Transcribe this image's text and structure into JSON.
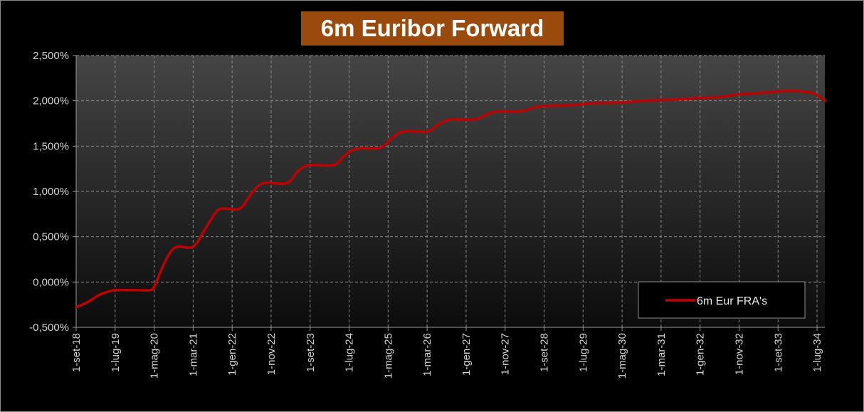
{
  "chart_data": {
    "type": "line",
    "title": "6m Euribor Forward",
    "xlabel": "",
    "ylabel": "",
    "ylim": [
      -0.5,
      2.5
    ],
    "yticks": [
      2.5,
      2.0,
      1.5,
      1.0,
      0.5,
      0.0,
      -0.5
    ],
    "ytick_labels": [
      "2,500%",
      "2,000%",
      "1,500%",
      "1,000%",
      "0,500%",
      "0,000%",
      "-0,500%"
    ],
    "x_start": "2018-09",
    "x_end": "2034-09",
    "xtick_labels": [
      "1-set-18",
      "1-lug-19",
      "1-mag-20",
      "1-mar-21",
      "1-gen-22",
      "1-nov-22",
      "1-set-23",
      "1-lug-24",
      "1-mag-25",
      "1-mar-26",
      "1-gen-27",
      "1-nov-27",
      "1-set-28",
      "1-lug-29",
      "1-mag-30",
      "1-mar-31",
      "1-gen-32",
      "1-nov-32",
      "1-set-33",
      "1-lug-34"
    ],
    "xtick_dates": [
      "2018-09",
      "2019-07",
      "2020-05",
      "2021-03",
      "2022-01",
      "2022-11",
      "2023-09",
      "2024-07",
      "2025-05",
      "2026-03",
      "2027-01",
      "2027-11",
      "2028-09",
      "2029-07",
      "2030-05",
      "2031-03",
      "2032-01",
      "2032-11",
      "2033-09",
      "2034-07"
    ],
    "grid": true,
    "legend_position": "bottom-right",
    "series": [
      {
        "name": "6m Eur FRA's",
        "color": "#c00000",
        "points": [
          [
            "2018-09",
            -0.28
          ],
          [
            "2018-12",
            -0.22
          ],
          [
            "2019-03",
            -0.14
          ],
          [
            "2019-05",
            -0.11
          ],
          [
            "2019-07",
            -0.09
          ],
          [
            "2020-01",
            -0.09
          ],
          [
            "2020-04",
            -0.09
          ],
          [
            "2020-05",
            -0.05
          ],
          [
            "2020-07",
            0.15
          ],
          [
            "2020-09",
            0.32
          ],
          [
            "2020-11",
            0.39
          ],
          [
            "2021-03",
            0.39
          ],
          [
            "2021-06",
            0.58
          ],
          [
            "2021-09",
            0.78
          ],
          [
            "2021-11",
            0.81
          ],
          [
            "2022-03",
            0.81
          ],
          [
            "2022-06",
            0.98
          ],
          [
            "2022-09",
            1.09
          ],
          [
            "2023-03",
            1.09
          ],
          [
            "2023-06",
            1.23
          ],
          [
            "2023-09",
            1.29
          ],
          [
            "2024-03",
            1.29
          ],
          [
            "2024-06",
            1.4
          ],
          [
            "2024-09",
            1.47
          ],
          [
            "2025-03",
            1.48
          ],
          [
            "2025-06",
            1.59
          ],
          [
            "2025-09",
            1.66
          ],
          [
            "2026-03",
            1.66
          ],
          [
            "2026-06",
            1.74
          ],
          [
            "2026-09",
            1.79
          ],
          [
            "2027-03",
            1.79
          ],
          [
            "2027-06",
            1.84
          ],
          [
            "2027-09",
            1.88
          ],
          [
            "2028-03",
            1.88
          ],
          [
            "2028-06",
            1.92
          ],
          [
            "2028-09",
            1.94
          ],
          [
            "2029-04",
            1.95
          ],
          [
            "2029-09",
            1.97
          ],
          [
            "2030-05",
            1.98
          ],
          [
            "2030-11",
            2.0
          ],
          [
            "2031-06",
            2.01
          ],
          [
            "2032-01",
            2.03
          ],
          [
            "2032-06",
            2.04
          ],
          [
            "2032-11",
            2.07
          ],
          [
            "2033-03",
            2.08
          ],
          [
            "2033-09",
            2.1
          ],
          [
            "2034-01",
            2.11
          ],
          [
            "2034-06",
            2.08
          ],
          [
            "2034-09",
            2.0
          ]
        ]
      }
    ]
  }
}
